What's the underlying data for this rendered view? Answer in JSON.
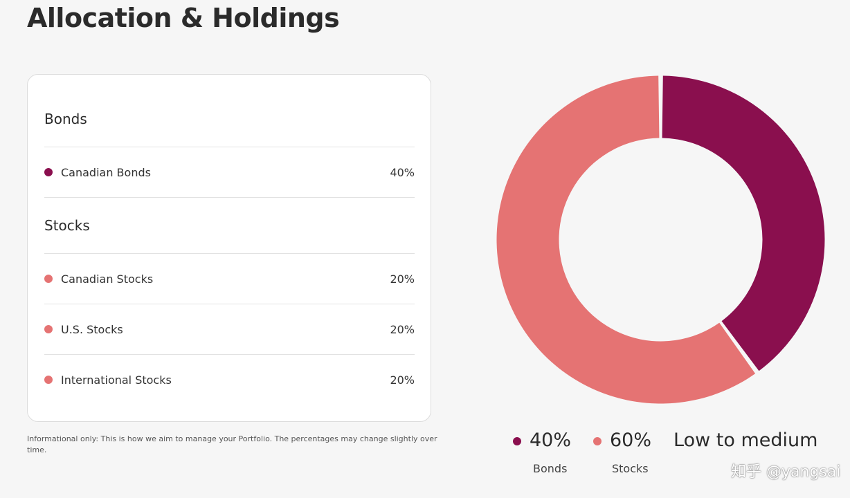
{
  "page": {
    "title": "Allocation & Holdings"
  },
  "holdings": {
    "groups": [
      {
        "heading": "Bonds",
        "items": [
          {
            "label": "Canadian Bonds",
            "value": "40%",
            "color": "#8a0f4e"
          }
        ]
      },
      {
        "heading": "Stocks",
        "items": [
          {
            "label": "Canadian Stocks",
            "value": "20%",
            "color": "#e57373"
          },
          {
            "label": "U.S. Stocks",
            "value": "20%",
            "color": "#e57373"
          },
          {
            "label": "International Stocks",
            "value": "20%",
            "color": "#e57373"
          }
        ]
      }
    ]
  },
  "disclaimer": "Informational only: This is how we aim to manage your Portfolio. The percentages may change slightly over time.",
  "chart_data": {
    "type": "pie",
    "categories": [
      "Bonds",
      "Stocks"
    ],
    "values": [
      40,
      60
    ],
    "colors": [
      "#8a0f4e",
      "#e57373"
    ]
  },
  "legend": {
    "bonds": {
      "pct": "40%",
      "label": "Bonds",
      "color": "#8a0f4e"
    },
    "stocks": {
      "pct": "60%",
      "label": "Stocks",
      "color": "#e57373"
    },
    "risk": "Low to medium"
  },
  "watermark": "知乎 @yangsai"
}
